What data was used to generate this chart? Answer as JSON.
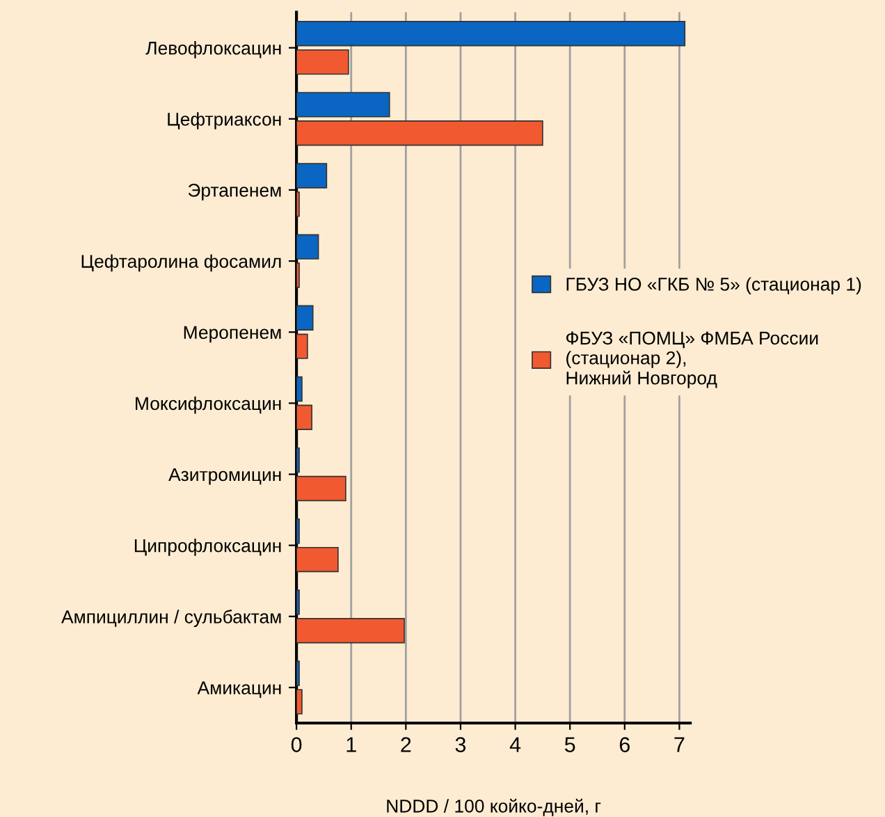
{
  "chart_data": {
    "type": "bar",
    "orientation": "horizontal",
    "xlabel": "NDDD / 100 койко-дней, г",
    "categories": [
      "Левофлоксацин",
      "Цефтриаксон",
      "Эртапенем",
      "Цефтаролина фосамил",
      "Меропенем",
      "Моксифлоксацин",
      "Азитромицин",
      "Ципрофлоксацин",
      "Ампициллин / сульбактам",
      "Амикацин"
    ],
    "series": [
      {
        "name": "ГБУЗ НО «ГКБ № 5» (стационар 1)",
        "color": "#0a66c2",
        "values": [
          7.1,
          1.7,
          0.55,
          0.4,
          0.3,
          0.1,
          0.05,
          0.05,
          0.05,
          0.05
        ]
      },
      {
        "name": "ФБУЗ «ПОМЦ» ФМБА России\n(стационар 2),\nНижний Новгород",
        "color": "#f15a30",
        "values": [
          0.95,
          4.5,
          0.05,
          0.05,
          0.2,
          0.28,
          0.9,
          0.76,
          1.97,
          0.1
        ]
      }
    ],
    "xlim": [
      0,
      7.2
    ],
    "xticks": [
      0,
      1,
      2,
      3,
      4,
      5,
      6,
      7
    ],
    "grid": "x",
    "legend": "right"
  }
}
